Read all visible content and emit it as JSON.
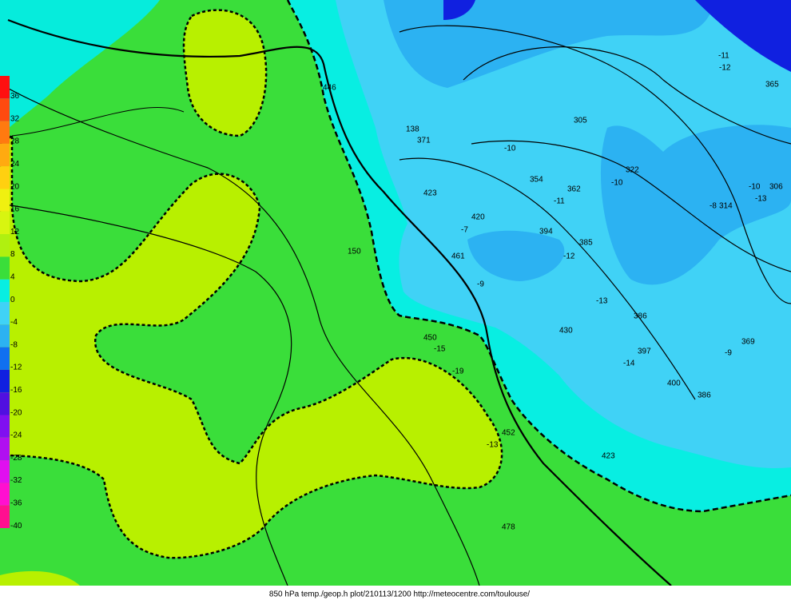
{
  "legend": {
    "labels": [
      "36",
      "32",
      "28",
      "24",
      "20",
      "16",
      "12",
      "8",
      "4",
      "0",
      "-4",
      "-8",
      "-12",
      "-16",
      "-20",
      "-24",
      "-28",
      "-32",
      "-36",
      "-40"
    ]
  },
  "map_labels": [
    "446",
    "138",
    "371",
    "423",
    "420",
    "461",
    "450",
    "430",
    "397",
    "400",
    "386",
    "423",
    "478",
    "452",
    "369",
    "306",
    "314",
    "322",
    "362",
    "354",
    "305",
    "365",
    "385",
    "-10",
    "-13",
    "-8",
    "-9",
    "-13",
    "-19",
    "-15",
    "-7",
    "-9",
    "-12",
    "-14",
    "-11",
    "-10",
    "-10",
    "150",
    "-12",
    "-11",
    "394",
    "-13",
    "386"
  ],
  "footer": "850 hPa temp./geop.h plot/210113/1200 http://meteocentre.com/toulouse/"
}
